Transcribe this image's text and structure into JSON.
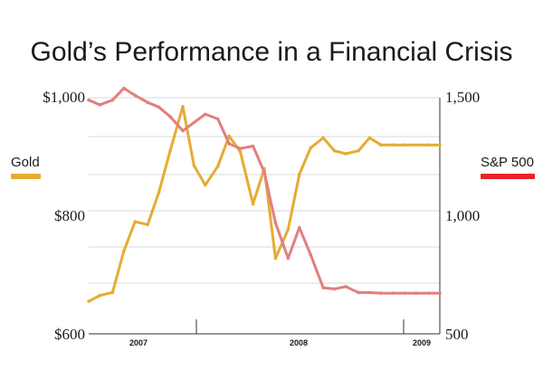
{
  "chart_data": {
    "type": "line",
    "title": "Gold’s Performance in a Financial Crisis",
    "x_tick_labels": [
      "2007",
      "2008",
      "2009"
    ],
    "y_left": {
      "label": "Gold",
      "range": [
        600,
        1000
      ],
      "tick_labels": [
        "$1,000",
        "$800",
        "$600"
      ]
    },
    "y_right": {
      "label": "S&P 500",
      "range": [
        500,
        1500
      ],
      "tick_labels": [
        "1,500",
        "1,000",
        "500"
      ]
    },
    "colors": {
      "gold": "#e5ac33",
      "sp500": "#e17f7f",
      "sp500_legend": "#e8242a",
      "grid": "#d8d8d8"
    },
    "grid": true,
    "series": [
      {
        "name": "Gold",
        "axis": "left",
        "x": [
          2006.5,
          2006.58,
          2006.67,
          2006.75,
          2006.83,
          2006.92,
          2007.0,
          2007.08,
          2007.17,
          2007.25,
          2007.33,
          2007.42,
          2007.5,
          2007.58,
          2007.67,
          2007.75,
          2007.83,
          2007.92,
          2008.0,
          2008.08,
          2008.17,
          2008.25,
          2008.33,
          2008.42,
          2008.5,
          2008.58,
          2008.67,
          2008.75,
          2008.83,
          2008.92,
          2009.0
        ],
        "values": [
          655,
          665,
          670,
          740,
          790,
          785,
          840,
          910,
          985,
          885,
          852,
          884,
          935,
          908,
          820,
          880,
          728,
          777,
          870,
          915,
          932,
          910,
          905,
          910,
          932,
          920,
          920,
          920,
          920,
          920,
          920
        ]
      },
      {
        "name": "S&P 500",
        "axis": "right",
        "x": [
          2006.5,
          2006.58,
          2006.67,
          2006.75,
          2006.83,
          2006.92,
          2007.0,
          2007.08,
          2007.17,
          2007.25,
          2007.33,
          2007.42,
          2007.5,
          2007.58,
          2007.67,
          2007.75,
          2007.83,
          2007.92,
          2008.0,
          2008.08,
          2008.17,
          2008.25,
          2008.33,
          2008.42,
          2008.5,
          2008.58,
          2008.67,
          2008.75,
          2008.83,
          2008.92,
          2009.0
        ],
        "values": [
          1490,
          1470,
          1490,
          1540,
          1510,
          1480,
          1460,
          1420,
          1360,
          1395,
          1430,
          1410,
          1305,
          1285,
          1295,
          1185,
          970,
          820,
          950,
          835,
          695,
          690,
          700,
          675,
          675,
          672,
          672,
          672,
          672,
          672,
          672
        ]
      }
    ]
  }
}
